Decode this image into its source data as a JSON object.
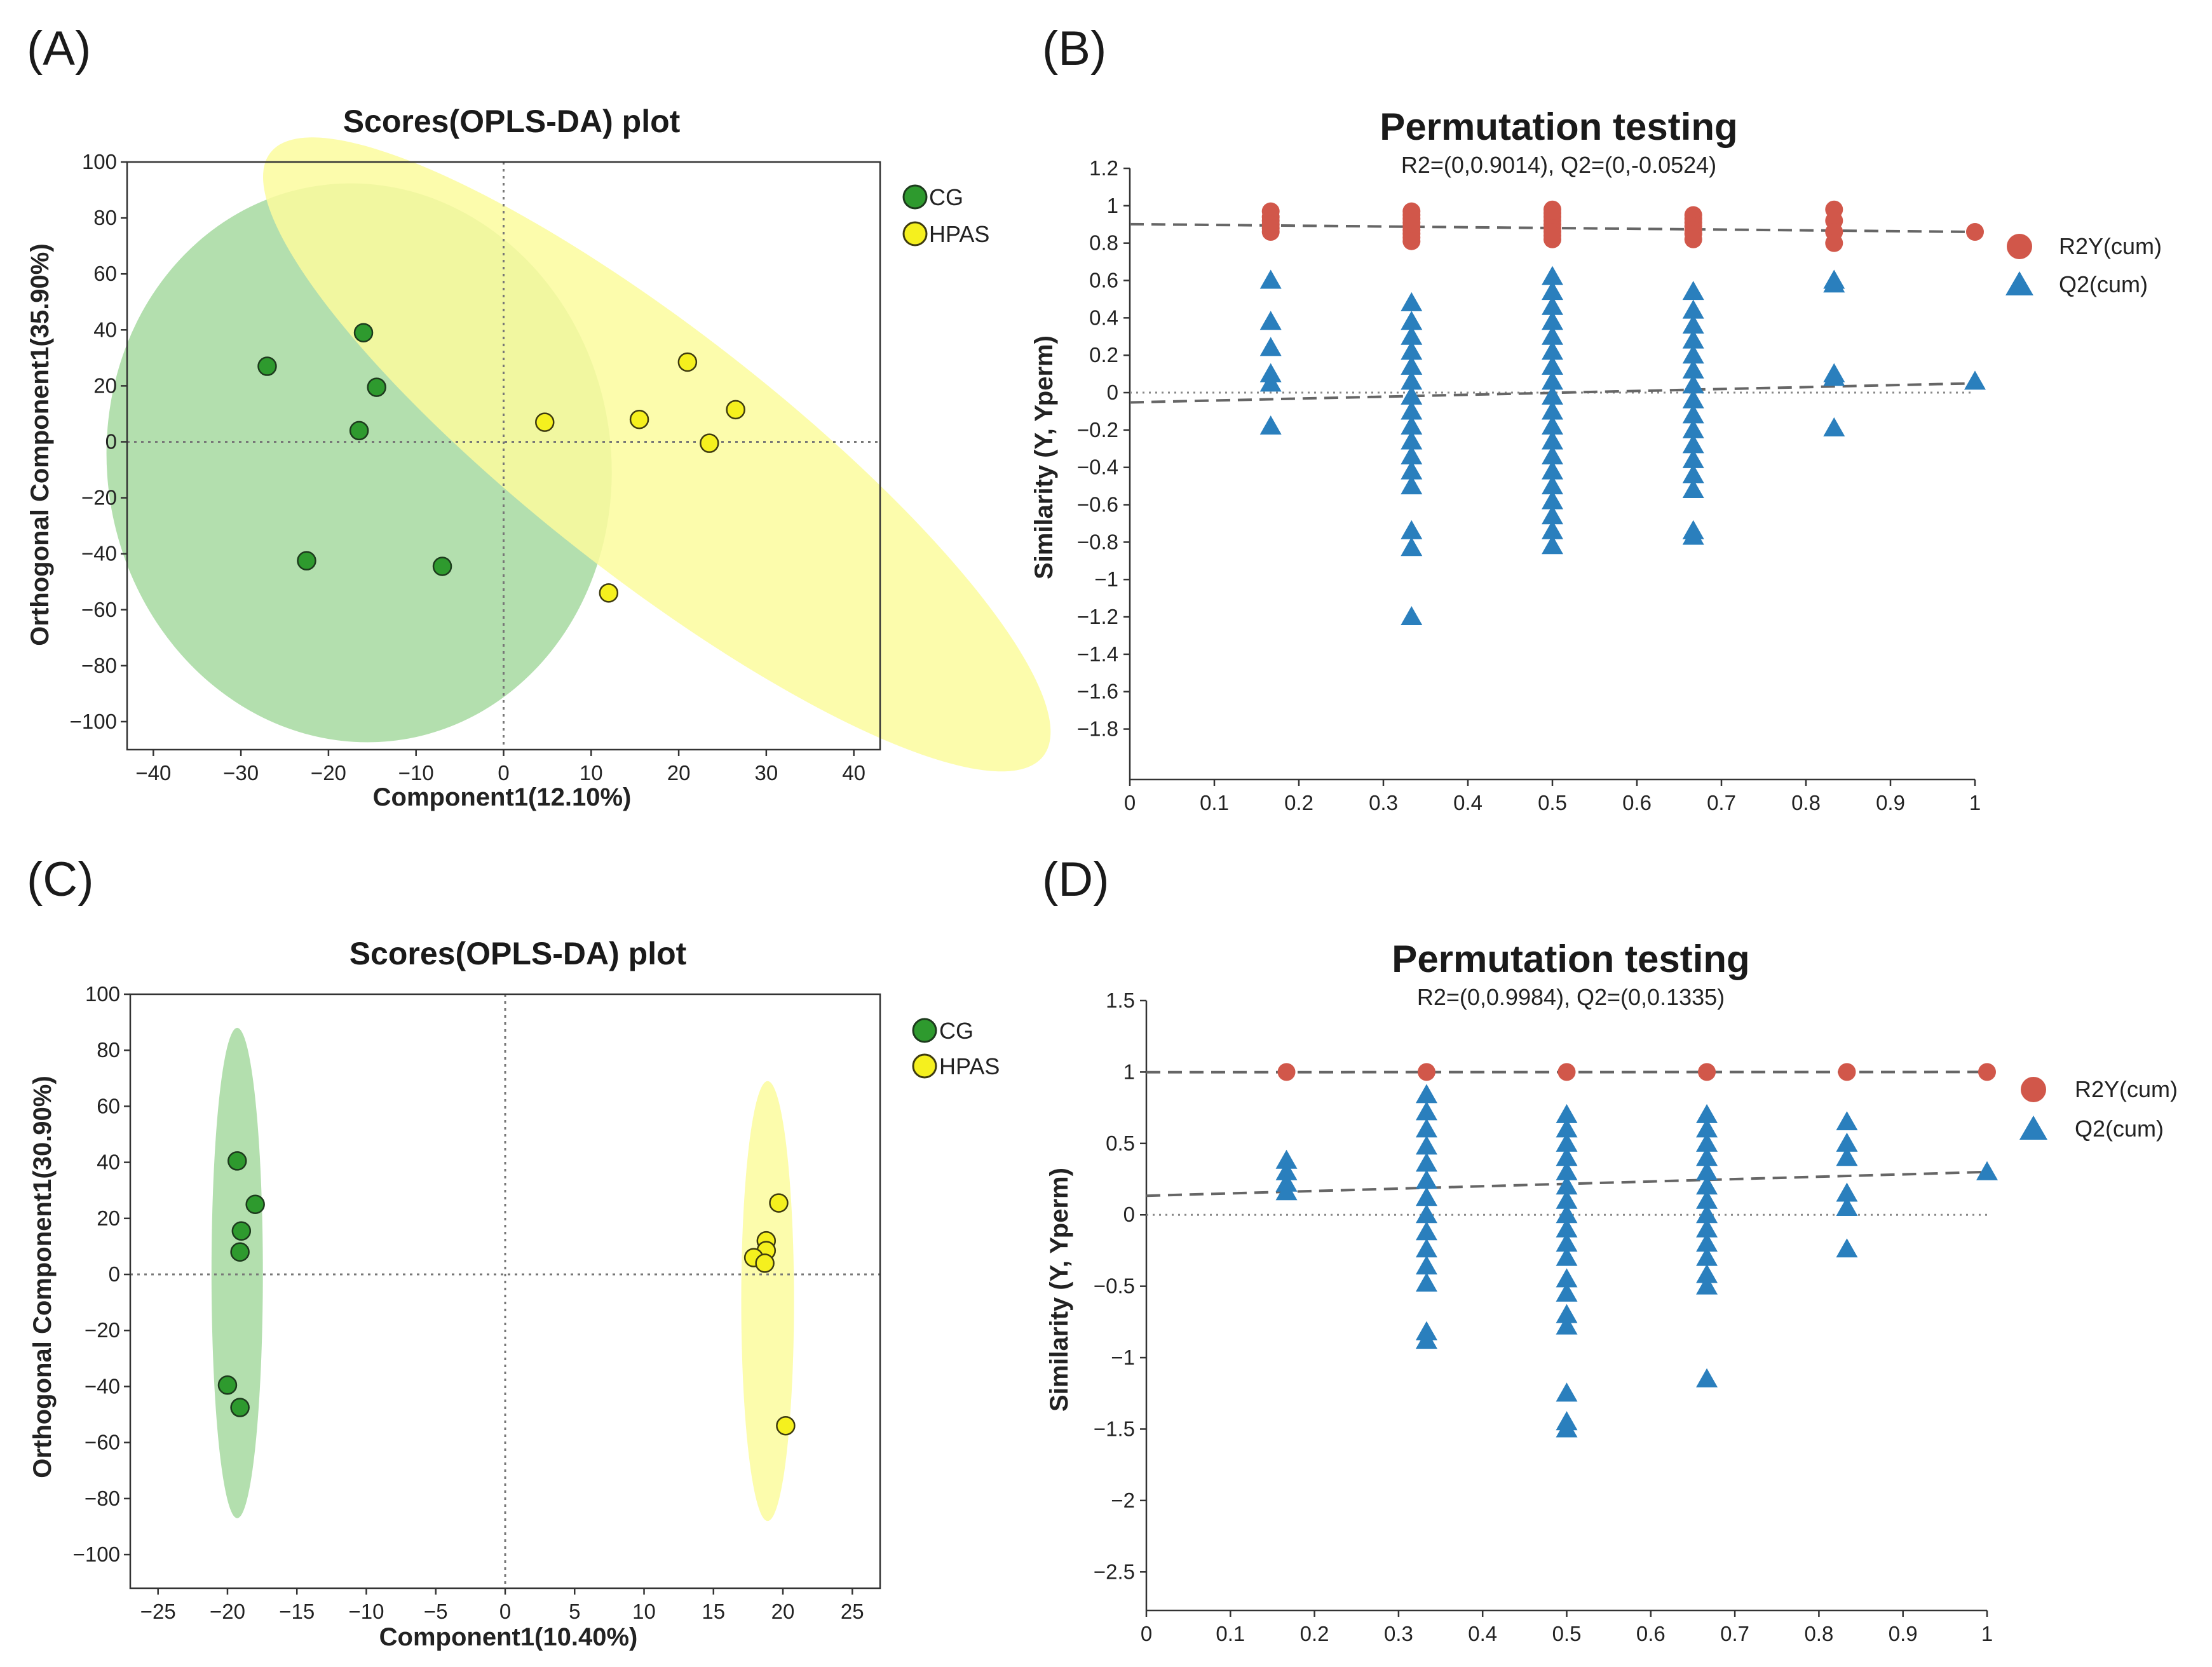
{
  "panel_labels": [
    "(A)",
    "(B)",
    "(C)",
    "(D)"
  ],
  "colors": {
    "cg_fill": "#2e9a2e",
    "cg_ellipse": "#a6d9a0",
    "hpas_fill": "#f5f01e",
    "hpas_ellipse": "#fbfb9e",
    "r2y": "#d1574a",
    "q2": "#2a7fbd"
  },
  "chart_data": [
    {
      "id": "A",
      "type": "scatter",
      "title": "Scores(OPLS-DA) plot",
      "xlabel": "Component1(12.10%)",
      "ylabel": "Orthogonal Component1(35.90%)",
      "xlim": [
        -43,
        43
      ],
      "ylim": [
        -110,
        100
      ],
      "xticks": [
        -40,
        -30,
        -20,
        -10,
        0,
        10,
        20,
        30,
        40
      ],
      "yticks": [
        100,
        80,
        60,
        40,
        20,
        0,
        -20,
        -40,
        -60,
        -80,
        -100
      ],
      "legend": [
        "CG",
        "HPAS"
      ],
      "series": [
        {
          "name": "CG",
          "points": [
            [
              -27,
              27
            ],
            [
              -16,
              39
            ],
            [
              -14.5,
              19.5
            ],
            [
              -16.5,
              4
            ],
            [
              -22.5,
              -42.5
            ],
            [
              -7,
              -44.5
            ]
          ],
          "ellipse": {
            "cx": -16.5,
            "cy": -7.5,
            "rx": 32,
            "ry": 90,
            "angle": 81
          }
        },
        {
          "name": "HPAS",
          "points": [
            [
              4.7,
              7
            ],
            [
              15.5,
              8
            ],
            [
              21,
              28.5
            ],
            [
              26.5,
              11.5
            ],
            [
              23.5,
              -0.5
            ],
            [
              12,
              -54
            ]
          ],
          "ellipse": {
            "cx": 17.5,
            "cy": -4.5,
            "rx": 56,
            "ry": 44,
            "angle": 38
          }
        }
      ]
    },
    {
      "id": "B",
      "type": "scatter",
      "title": "Permutation testing",
      "subtitle": "R2=(0,0.9014), Q2=(0,-0.0524)",
      "xlabel": "",
      "ylabel": "Similarity (Y, Yperm)",
      "xlim": [
        0,
        1
      ],
      "ylim": [
        -2.07,
        1.2
      ],
      "xticks": [
        0,
        0.1,
        0.2,
        0.3,
        0.4,
        0.5,
        0.6,
        0.7,
        0.8,
        0.9,
        1
      ],
      "xticklabels": [
        "0",
        "0.1",
        "0.2",
        "0.3",
        "0.4",
        "0.5",
        "0.6",
        "0.7",
        "0.8",
        "0.9",
        "1"
      ],
      "yticks": [
        1.2,
        1,
        0.8,
        0.6,
        0.4,
        0.2,
        0,
        -0.2,
        -0.4,
        -0.6,
        -0.8,
        -1,
        -1.2,
        -1.4,
        -1.6,
        -1.8
      ],
      "yticklabels": [
        "1.2",
        "1",
        "0.8",
        "0.6",
        "0.4",
        "0.2",
        "0",
        "−0.2",
        "−0.4",
        "−0.6",
        "−0.8",
        "−1",
        "−1.2",
        "−1.4",
        "−1.6",
        "−1.8"
      ],
      "legend": [
        "R2Y(cum)",
        "Q2(cum)"
      ],
      "r2_line": [
        0.9014,
        0.86
      ],
      "q2_line": [
        -0.0524,
        0.05
      ],
      "series": [
        {
          "name": "R2Y(cum)",
          "points": [
            [
              0.1667,
              0.97
            ],
            [
              0.1667,
              0.94
            ],
            [
              0.1667,
              0.92
            ],
            [
              0.1667,
              0.9
            ],
            [
              0.1667,
              0.88
            ],
            [
              0.1667,
              0.86
            ],
            [
              0.3333,
              0.97
            ],
            [
              0.3333,
              0.95
            ],
            [
              0.3333,
              0.93
            ],
            [
              0.3333,
              0.91
            ],
            [
              0.3333,
              0.89
            ],
            [
              0.3333,
              0.87
            ],
            [
              0.3333,
              0.85
            ],
            [
              0.3333,
              0.83
            ],
            [
              0.3333,
              0.81
            ],
            [
              0.5,
              0.98
            ],
            [
              0.5,
              0.96
            ],
            [
              0.5,
              0.94
            ],
            [
              0.5,
              0.92
            ],
            [
              0.5,
              0.9
            ],
            [
              0.5,
              0.88
            ],
            [
              0.5,
              0.86
            ],
            [
              0.5,
              0.84
            ],
            [
              0.5,
              0.82
            ],
            [
              0.6667,
              0.95
            ],
            [
              0.6667,
              0.93
            ],
            [
              0.6667,
              0.91
            ],
            [
              0.6667,
              0.89
            ],
            [
              0.6667,
              0.87
            ],
            [
              0.6667,
              0.85
            ],
            [
              0.6667,
              0.82
            ],
            [
              0.8333,
              0.98
            ],
            [
              0.8333,
              0.92
            ],
            [
              0.8333,
              0.86
            ],
            [
              0.8333,
              0.8
            ],
            [
              1,
              0.86
            ]
          ]
        },
        {
          "name": "Q2(cum)",
          "points": [
            [
              0.1667,
              0.6
            ],
            [
              0.1667,
              0.38
            ],
            [
              0.1667,
              0.24
            ],
            [
              0.1667,
              0.1
            ],
            [
              0.1667,
              0.05
            ],
            [
              0.1667,
              -0.18
            ],
            [
              0.3333,
              0.48
            ],
            [
              0.3333,
              0.38
            ],
            [
              0.3333,
              0.3
            ],
            [
              0.3333,
              0.22
            ],
            [
              0.3333,
              0.14
            ],
            [
              0.3333,
              0.06
            ],
            [
              0.3333,
              -0.02
            ],
            [
              0.3333,
              -0.1
            ],
            [
              0.3333,
              -0.18
            ],
            [
              0.3333,
              -0.26
            ],
            [
              0.3333,
              -0.34
            ],
            [
              0.3333,
              -0.42
            ],
            [
              0.3333,
              -0.5
            ],
            [
              0.3333,
              -0.74
            ],
            [
              0.3333,
              -0.83
            ],
            [
              0.3333,
              -1.2
            ],
            [
              0.5,
              0.62
            ],
            [
              0.5,
              0.54
            ],
            [
              0.5,
              0.46
            ],
            [
              0.5,
              0.38
            ],
            [
              0.5,
              0.3
            ],
            [
              0.5,
              0.22
            ],
            [
              0.5,
              0.14
            ],
            [
              0.5,
              0.06
            ],
            [
              0.5,
              -0.02
            ],
            [
              0.5,
              -0.1
            ],
            [
              0.5,
              -0.18
            ],
            [
              0.5,
              -0.26
            ],
            [
              0.5,
              -0.34
            ],
            [
              0.5,
              -0.42
            ],
            [
              0.5,
              -0.5
            ],
            [
              0.5,
              -0.58
            ],
            [
              0.5,
              -0.66
            ],
            [
              0.5,
              -0.74
            ],
            [
              0.5,
              -0.82
            ],
            [
              0.6667,
              0.54
            ],
            [
              0.6667,
              0.44
            ],
            [
              0.6667,
              0.36
            ],
            [
              0.6667,
              0.28
            ],
            [
              0.6667,
              0.2
            ],
            [
              0.6667,
              0.12
            ],
            [
              0.6667,
              0.04
            ],
            [
              0.6667,
              -0.04
            ],
            [
              0.6667,
              -0.12
            ],
            [
              0.6667,
              -0.2
            ],
            [
              0.6667,
              -0.28
            ],
            [
              0.6667,
              -0.36
            ],
            [
              0.6667,
              -0.44
            ],
            [
              0.6667,
              -0.52
            ],
            [
              0.6667,
              -0.74
            ],
            [
              0.6667,
              -0.77
            ],
            [
              0.8333,
              0.6
            ],
            [
              0.8333,
              0.58
            ],
            [
              0.8333,
              0.1
            ],
            [
              0.8333,
              0.08
            ],
            [
              0.8333,
              -0.19
            ],
            [
              1,
              0.06
            ]
          ]
        }
      ]
    },
    {
      "id": "C",
      "type": "scatter",
      "title": "Scores(OPLS-DA) plot",
      "xlabel": "Component1(10.40%)",
      "ylabel": "Orthogonal Component1(30.90%)",
      "xlim": [
        -27,
        27
      ],
      "ylim": [
        -112,
        100
      ],
      "xticks": [
        -25,
        -20,
        -15,
        -10,
        -5,
        0,
        5,
        10,
        15,
        20,
        25
      ],
      "yticks": [
        100,
        80,
        60,
        40,
        20,
        0,
        -20,
        -40,
        -60,
        -80,
        -100
      ],
      "legend": [
        "CG",
        "HPAS"
      ],
      "series": [
        {
          "name": "CG",
          "points": [
            [
              -19.3,
              40.5
            ],
            [
              -18,
              25
            ],
            [
              -19,
              15.5
            ],
            [
              -19.1,
              8
            ],
            [
              -20,
              -39.5
            ],
            [
              -19.1,
              -47.5
            ]
          ],
          "ellipse": {
            "cx": -19.3,
            "cy": 0.5,
            "rx": 1.85,
            "ry": 87.5,
            "angle": 0
          }
        },
        {
          "name": "HPAS",
          "points": [
            [
              19.7,
              25.5
            ],
            [
              18.8,
              12
            ],
            [
              18.8,
              8.5
            ],
            [
              17.9,
              6
            ],
            [
              18.7,
              4
            ],
            [
              20.2,
              -54
            ]
          ],
          "ellipse": {
            "cx": 18.9,
            "cy": -9.5,
            "rx": 1.9,
            "ry": 78.5,
            "angle": 0
          }
        }
      ]
    },
    {
      "id": "D",
      "type": "scatter",
      "title": "Permutation testing",
      "subtitle": "R2=(0,0.9984), Q2=(0,0.1335)",
      "xlabel": "",
      "ylabel": "Similarity (Y, Yperm)",
      "xlim": [
        0,
        1
      ],
      "ylim": [
        -2.77,
        1.5
      ],
      "xticks": [
        0,
        0.1,
        0.2,
        0.3,
        0.4,
        0.5,
        0.6,
        0.7,
        0.8,
        0.9,
        1
      ],
      "xticklabels": [
        "0",
        "0.1",
        "0.2",
        "0.3",
        "0.4",
        "0.5",
        "0.6",
        "0.7",
        "0.8",
        "0.9",
        "1"
      ],
      "yticks": [
        1.5,
        1,
        0.5,
        0,
        -0.5,
        -1,
        -1.5,
        -2,
        -2.5
      ],
      "yticklabels": [
        "1.5",
        "1",
        "0.5",
        "0",
        "−0.5",
        "−1",
        "−1.5",
        "−2",
        "−2.5"
      ],
      "legend": [
        "R2Y(cum)",
        "Q2(cum)"
      ],
      "r2_line": [
        0.9984,
        1.0
      ],
      "q2_line": [
        0.1335,
        0.3
      ],
      "series": [
        {
          "name": "R2Y(cum)",
          "points": [
            [
              0.1667,
              1
            ],
            [
              0.3333,
              1
            ],
            [
              0.5,
              1
            ],
            [
              0.6667,
              1
            ],
            [
              0.8333,
              1
            ],
            [
              1,
              1
            ]
          ]
        },
        {
          "name": "Q2(cum)",
          "points": [
            [
              0.1667,
              0.38
            ],
            [
              0.1667,
              0.3
            ],
            [
              0.1667,
              0.22
            ],
            [
              0.1667,
              0.16
            ],
            [
              0.3333,
              0.84
            ],
            [
              0.3333,
              0.72
            ],
            [
              0.3333,
              0.6
            ],
            [
              0.3333,
              0.48
            ],
            [
              0.3333,
              0.36
            ],
            [
              0.3333,
              0.24
            ],
            [
              0.3333,
              0.12
            ],
            [
              0.3333,
              0
            ],
            [
              0.3333,
              -0.12
            ],
            [
              0.3333,
              -0.24
            ],
            [
              0.3333,
              -0.36
            ],
            [
              0.3333,
              -0.48
            ],
            [
              0.3333,
              -0.82
            ],
            [
              0.3333,
              -0.88
            ],
            [
              0.5,
              0.7
            ],
            [
              0.5,
              0.6
            ],
            [
              0.5,
              0.5
            ],
            [
              0.5,
              0.4
            ],
            [
              0.5,
              0.3
            ],
            [
              0.5,
              0.2
            ],
            [
              0.5,
              0.1
            ],
            [
              0.5,
              0
            ],
            [
              0.5,
              -0.1
            ],
            [
              0.5,
              -0.2
            ],
            [
              0.5,
              -0.3
            ],
            [
              0.5,
              -0.45
            ],
            [
              0.5,
              -0.55
            ],
            [
              0.5,
              -0.7
            ],
            [
              0.5,
              -0.78
            ],
            [
              0.5,
              -1.25
            ],
            [
              0.5,
              -1.45
            ],
            [
              0.5,
              -1.5
            ],
            [
              0.6667,
              0.7
            ],
            [
              0.6667,
              0.6
            ],
            [
              0.6667,
              0.5
            ],
            [
              0.6667,
              0.4
            ],
            [
              0.6667,
              0.3
            ],
            [
              0.6667,
              0.2
            ],
            [
              0.6667,
              0.1
            ],
            [
              0.6667,
              0
            ],
            [
              0.6667,
              -0.1
            ],
            [
              0.6667,
              -0.2
            ],
            [
              0.6667,
              -0.3
            ],
            [
              0.6667,
              -0.42
            ],
            [
              0.6667,
              -0.5
            ],
            [
              0.6667,
              -1.15
            ],
            [
              0.8333,
              0.65
            ],
            [
              0.8333,
              0.5
            ],
            [
              0.8333,
              0.4
            ],
            [
              0.8333,
              0.15
            ],
            [
              0.8333,
              0.05
            ],
            [
              0.8333,
              -0.24
            ],
            [
              1,
              0.3
            ]
          ]
        }
      ]
    }
  ]
}
